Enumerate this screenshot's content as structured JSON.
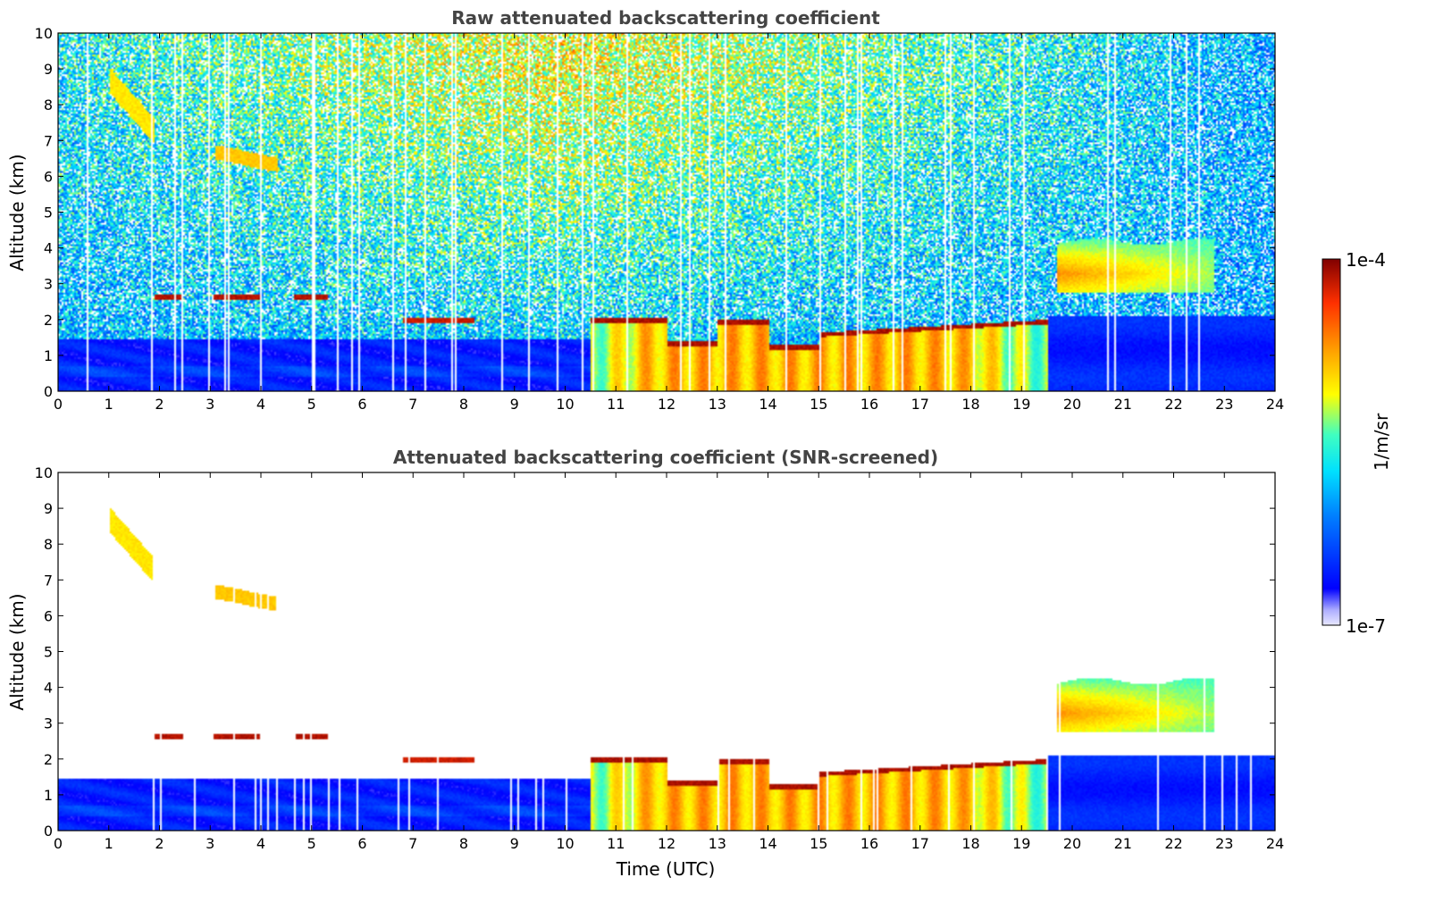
{
  "chart_data": [
    {
      "type": "heatmap",
      "title": "Raw attenuated backscattering coefficient",
      "xlabel": "",
      "ylabel": "Altitude (km)",
      "xlim": [
        0,
        24
      ],
      "ylim": [
        0,
        10
      ],
      "xticks": [
        "0",
        "1",
        "2",
        "3",
        "4",
        "5",
        "6",
        "7",
        "8",
        "9",
        "10",
        "11",
        "12",
        "13",
        "14",
        "15",
        "16",
        "17",
        "18",
        "19",
        "20",
        "21",
        "22",
        "23",
        "24"
      ],
      "yticks": [
        "0",
        "1",
        "2",
        "3",
        "4",
        "5",
        "6",
        "7",
        "8",
        "9",
        "10"
      ],
      "features": [
        {
          "name": "boundary layer",
          "x_start": 0,
          "x_end": 10.5,
          "top_km": 1.5,
          "level": "low"
        },
        {
          "name": "cloud-topped layer",
          "x_start": 10.5,
          "x_end": 19.5,
          "top_km": 2.0,
          "level": "high"
        },
        {
          "name": "elevated aerosol",
          "x_start": 19.7,
          "x_end": 22.8,
          "bottom_km": 2.8,
          "top_km": 4.2,
          "level": "medium"
        },
        {
          "name": "cirrus",
          "x_start": 1.0,
          "x_end": 1.9,
          "bottom_km": 7.2,
          "top_km": 8.8,
          "level": "medium"
        }
      ]
    },
    {
      "type": "heatmap",
      "title": "Attenuated backscattering coefficient (SNR-screened)",
      "xlabel": "Time (UTC)",
      "ylabel": "Altitude (km)",
      "xlim": [
        0,
        24
      ],
      "ylim": [
        0,
        10
      ],
      "xticks": [
        "0",
        "1",
        "2",
        "3",
        "4",
        "5",
        "6",
        "7",
        "8",
        "9",
        "10",
        "11",
        "12",
        "13",
        "14",
        "15",
        "16",
        "17",
        "18",
        "19",
        "20",
        "21",
        "22",
        "23",
        "24"
      ],
      "yticks": [
        "0",
        "1",
        "2",
        "3",
        "4",
        "5",
        "6",
        "7",
        "8",
        "9",
        "10"
      ]
    }
  ],
  "colorbar": {
    "max_label": "1e-4",
    "min_label": "1e-7",
    "unit_label": "1/m/sr",
    "colors": [
      "#e8e8ff",
      "#b0b0ff",
      "#0000ff",
      "#0080ff",
      "#00e0ff",
      "#40ffc0",
      "#ffff00",
      "#ffa000",
      "#ff3000",
      "#800000"
    ]
  }
}
